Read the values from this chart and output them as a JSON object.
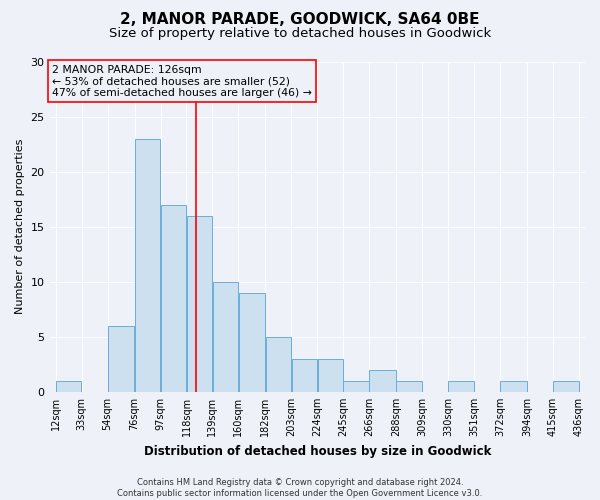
{
  "title1": "2, MANOR PARADE, GOODWICK, SA64 0BE",
  "title2": "Size of property relative to detached houses in Goodwick",
  "xlabel": "Distribution of detached houses by size in Goodwick",
  "ylabel": "Number of detached properties",
  "bin_edges": [
    12,
    33,
    54,
    76,
    97,
    118,
    139,
    160,
    182,
    203,
    224,
    245,
    266,
    288,
    309,
    330,
    351,
    372,
    394,
    415,
    436
  ],
  "bin_labels": [
    "12sqm",
    "33sqm",
    "54sqm",
    "76sqm",
    "97sqm",
    "118sqm",
    "139sqm",
    "160sqm",
    "182sqm",
    "203sqm",
    "224sqm",
    "245sqm",
    "266sqm",
    "288sqm",
    "309sqm",
    "330sqm",
    "351sqm",
    "372sqm",
    "394sqm",
    "415sqm",
    "436sqm"
  ],
  "counts": [
    1,
    0,
    6,
    23,
    17,
    16,
    10,
    9,
    5,
    3,
    3,
    1,
    2,
    1,
    0,
    1,
    0,
    1,
    0,
    1
  ],
  "bar_color": "#cce0f0",
  "bar_edgecolor": "#6aaed6",
  "vline_x": 126,
  "vline_color": "red",
  "annotation_line1": "2 MANOR PARADE: 126sqm",
  "annotation_line2": "← 53% of detached houses are smaller (52)",
  "annotation_line3": "47% of semi-detached houses are larger (46) →",
  "annotation_box_edgecolor": "red",
  "ylim": [
    0,
    30
  ],
  "yticks": [
    0,
    5,
    10,
    15,
    20,
    25,
    30
  ],
  "footer1": "Contains HM Land Registry data © Crown copyright and database right 2024.",
  "footer2": "Contains public sector information licensed under the Open Government Licence v3.0.",
  "bg_color": "#eef2f8",
  "grid_color": "#ffffff",
  "title1_fontsize": 11,
  "title2_fontsize": 9.5,
  "xlabel_fontsize": 8.5,
  "ylabel_fontsize": 8,
  "annotation_fontsize": 7.8,
  "tick_fontsize": 7,
  "footer_fontsize": 6
}
